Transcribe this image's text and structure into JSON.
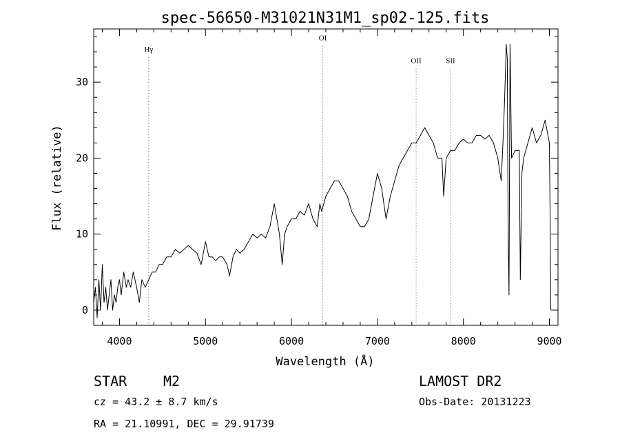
{
  "chart_data": {
    "type": "line",
    "title": "spec-56650-M31021N31M1_sp02-125.fits",
    "xlabel": "Wavelength (Å)",
    "ylabel": "Flux (relative)",
    "xlim": [
      3700,
      9100
    ],
    "ylim": [
      -2,
      37
    ],
    "xticks": [
      4000,
      5000,
      6000,
      7000,
      8000,
      9000
    ],
    "yticks": [
      0,
      10,
      20,
      30
    ],
    "grid": false,
    "line_color": "#000000",
    "annotations": [
      {
        "label": "Hγ",
        "x": 4340,
        "label_y": 34
      },
      {
        "label": "OI",
        "x": 6364,
        "label_y": 35.5
      },
      {
        "label": "OII",
        "x": 7450,
        "label_y": 32.5
      },
      {
        "label": "SII",
        "x": 7850,
        "label_y": 32.5
      }
    ],
    "series": [
      {
        "points": [
          [
            3700,
            1
          ],
          [
            3720,
            3
          ],
          [
            3740,
            -1
          ],
          [
            3760,
            4
          ],
          [
            3780,
            0
          ],
          [
            3800,
            6
          ],
          [
            3820,
            1
          ],
          [
            3840,
            3
          ],
          [
            3860,
            0
          ],
          [
            3880,
            2
          ],
          [
            3900,
            4
          ],
          [
            3920,
            0
          ],
          [
            3940,
            2
          ],
          [
            3960,
            1
          ],
          [
            3980,
            3
          ],
          [
            4000,
            4
          ],
          [
            4020,
            2
          ],
          [
            4050,
            5
          ],
          [
            4080,
            3
          ],
          [
            4100,
            4
          ],
          [
            4130,
            3
          ],
          [
            4160,
            5
          ],
          [
            4200,
            3
          ],
          [
            4230,
            1
          ],
          [
            4260,
            4
          ],
          [
            4300,
            3
          ],
          [
            4340,
            4
          ],
          [
            4380,
            5
          ],
          [
            4420,
            5
          ],
          [
            4460,
            6
          ],
          [
            4500,
            6
          ],
          [
            4550,
            7
          ],
          [
            4600,
            7
          ],
          [
            4650,
            8
          ],
          [
            4700,
            7.5
          ],
          [
            4750,
            8
          ],
          [
            4800,
            8.5
          ],
          [
            4850,
            8
          ],
          [
            4900,
            7.5
          ],
          [
            4950,
            6
          ],
          [
            5000,
            9
          ],
          [
            5040,
            7
          ],
          [
            5080,
            7
          ],
          [
            5120,
            6.5
          ],
          [
            5160,
            7
          ],
          [
            5200,
            7
          ],
          [
            5250,
            6
          ],
          [
            5280,
            4.5
          ],
          [
            5320,
            7
          ],
          [
            5360,
            8
          ],
          [
            5400,
            7.5
          ],
          [
            5450,
            8
          ],
          [
            5500,
            9
          ],
          [
            5550,
            10
          ],
          [
            5600,
            9.5
          ],
          [
            5650,
            10
          ],
          [
            5700,
            9.5
          ],
          [
            5750,
            11
          ],
          [
            5800,
            14
          ],
          [
            5830,
            12
          ],
          [
            5860,
            10
          ],
          [
            5893,
            6
          ],
          [
            5920,
            10
          ],
          [
            5950,
            11
          ],
          [
            6000,
            12
          ],
          [
            6050,
            12
          ],
          [
            6100,
            13
          ],
          [
            6150,
            12.5
          ],
          [
            6200,
            14
          ],
          [
            6250,
            12
          ],
          [
            6300,
            11
          ],
          [
            6330,
            14
          ],
          [
            6350,
            13
          ],
          [
            6400,
            15
          ],
          [
            6450,
            16
          ],
          [
            6500,
            17
          ],
          [
            6550,
            17
          ],
          [
            6600,
            16
          ],
          [
            6650,
            15
          ],
          [
            6700,
            13
          ],
          [
            6750,
            12
          ],
          [
            6800,
            11
          ],
          [
            6850,
            11
          ],
          [
            6900,
            12
          ],
          [
            6950,
            15
          ],
          [
            7000,
            18
          ],
          [
            7050,
            16
          ],
          [
            7100,
            12
          ],
          [
            7150,
            15
          ],
          [
            7200,
            17
          ],
          [
            7250,
            19
          ],
          [
            7300,
            20
          ],
          [
            7350,
            21
          ],
          [
            7400,
            22
          ],
          [
            7450,
            22
          ],
          [
            7500,
            23
          ],
          [
            7550,
            24
          ],
          [
            7600,
            23
          ],
          [
            7650,
            22
          ],
          [
            7700,
            20
          ],
          [
            7750,
            20
          ],
          [
            7770,
            15
          ],
          [
            7800,
            20
          ],
          [
            7850,
            21
          ],
          [
            7900,
            21
          ],
          [
            7950,
            22
          ],
          [
            8000,
            22.5
          ],
          [
            8050,
            22
          ],
          [
            8100,
            22
          ],
          [
            8150,
            23
          ],
          [
            8200,
            23
          ],
          [
            8250,
            22.5
          ],
          [
            8300,
            23
          ],
          [
            8350,
            22
          ],
          [
            8400,
            20
          ],
          [
            8440,
            17
          ],
          [
            8460,
            22
          ],
          [
            8480,
            28
          ],
          [
            8498,
            35
          ],
          [
            8510,
            33
          ],
          [
            8520,
            10
          ],
          [
            8530,
            2
          ],
          [
            8542,
            35
          ],
          [
            8560,
            20
          ],
          [
            8600,
            21
          ],
          [
            8650,
            21
          ],
          [
            8662,
            4
          ],
          [
            8680,
            18
          ],
          [
            8700,
            20
          ],
          [
            8750,
            22
          ],
          [
            8800,
            24
          ],
          [
            8850,
            22
          ],
          [
            8900,
            23
          ],
          [
            8950,
            25
          ],
          [
            9000,
            22
          ],
          [
            9010,
            10
          ],
          [
            9015,
            0
          ]
        ]
      }
    ]
  },
  "info": {
    "object_class": "STAR",
    "subclass": "M2",
    "cz_text": "cz = 43.2 ± 8.7 km/s",
    "coords_text": "RA =  21.10991, DEC =  29.91739",
    "survey": "LAMOST DR2",
    "obs_date_text": "Obs-Date: 20131223"
  }
}
